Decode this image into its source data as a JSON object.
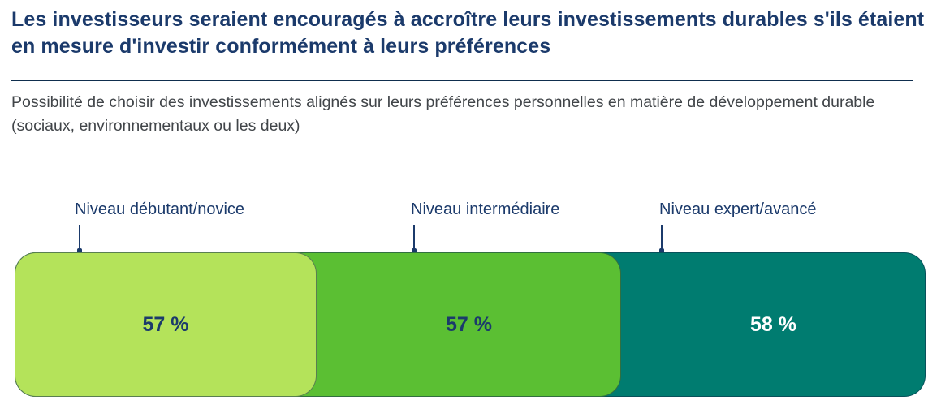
{
  "header": {
    "title": "Les investisseurs seraient encouragés à accroître leurs investissements durables s'ils étaient en mesure d'investir conformément à leurs préférences",
    "subtitle": "Possibilité de choisir des investissements alignés sur leurs préférences personnelles en matière de développement durable (sociaux, environnementaux ou les deux)"
  },
  "colors": {
    "title_navy": "#1B3A6B",
    "divider_navy": "#0F2E4E",
    "subtitle_gray": "#414549",
    "bar_beginner_light_green": "#B4E35A",
    "bar_intermediate_green": "#5BBF33",
    "bar_expert_teal": "#007C70",
    "value_text_on_green": "#1B3A6B",
    "value_text_on_teal": "#FFFFFF"
  },
  "chart_data": {
    "type": "bar",
    "title": "Les investisseurs seraient encouragés à accroître leurs investissements durables s'ils étaient en mesure d'investir conformément à leurs préférences",
    "subtitle": "Possibilité de choisir des investissements alignés sur leurs préférences personnelles en matière de développement durable (sociaux, environnementaux ou les deux)",
    "categories": [
      "Niveau débutant/novice",
      "Niveau intermédiaire",
      "Niveau expert/avancé"
    ],
    "values": [
      57,
      57,
      58
    ],
    "unit": "%",
    "value_labels": [
      "57 %",
      "57 %",
      "58 %"
    ],
    "bar_colors": [
      "#B4E35A",
      "#5BBF33",
      "#007C70"
    ],
    "layout": "single horizontal band of three equal overlapping rounded segments; category labels above with vertical leader lines pointing to each segment; value labels centered inside segments; legend off; no axes"
  }
}
